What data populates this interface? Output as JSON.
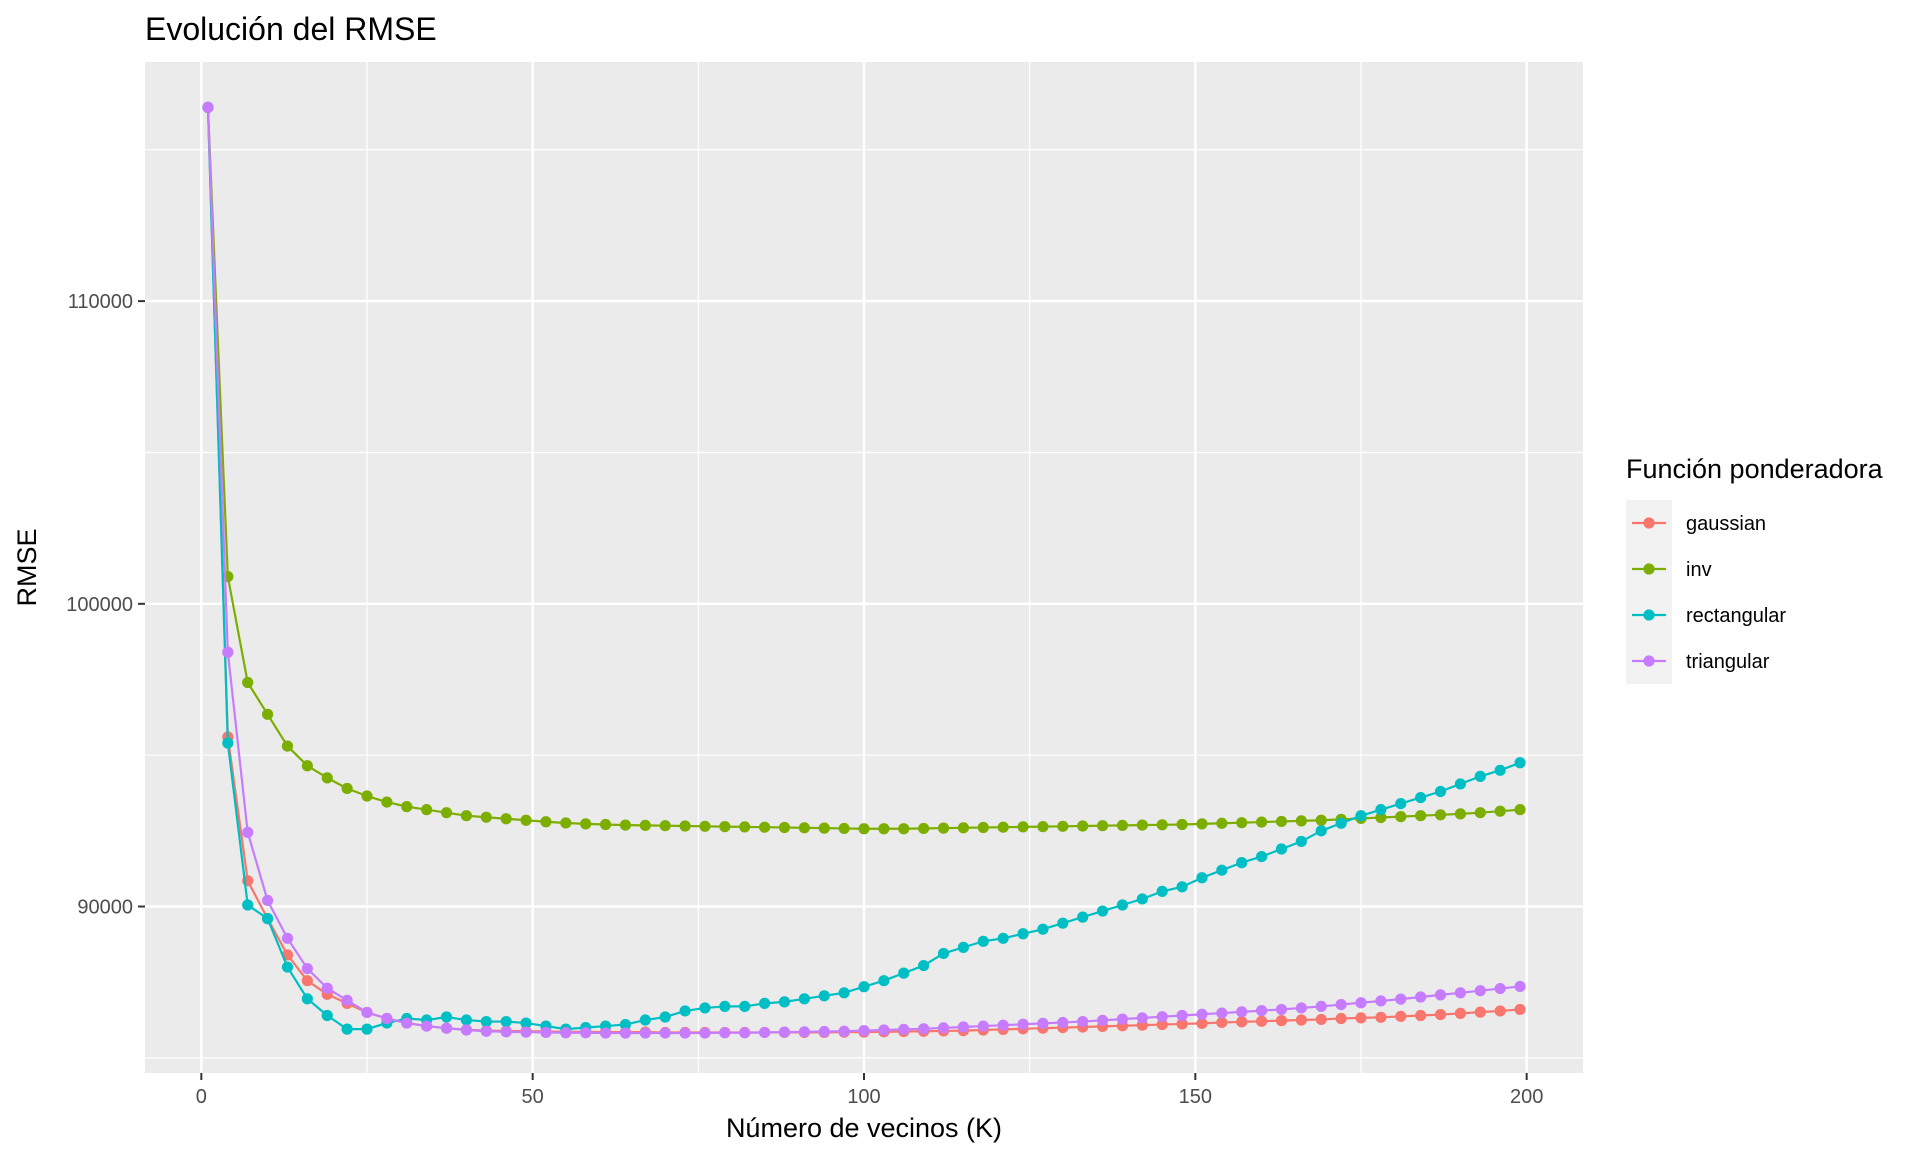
{
  "chart_data": {
    "type": "line",
    "title": "Evolución del RMSE",
    "xlabel": "Número de vecinos (K)",
    "ylabel": "RMSE",
    "xlim": [
      -8.5,
      208.5
    ],
    "ylim": [
      84500,
      117900
    ],
    "x_ticks": [
      0,
      50,
      100,
      150,
      200
    ],
    "y_ticks": [
      90000,
      100000,
      110000
    ],
    "x_tick_labels": [
      "0",
      "50",
      "100",
      "150",
      "200"
    ],
    "y_tick_labels": [
      "90000",
      "100000",
      "110000"
    ],
    "x": [
      1,
      4,
      7,
      10,
      13,
      16,
      19,
      22,
      25,
      28,
      31,
      34,
      37,
      40,
      43,
      46,
      49,
      52,
      55,
      58,
      61,
      64,
      67,
      70,
      73,
      76,
      79,
      82,
      85,
      88,
      91,
      94,
      97,
      100,
      103,
      106,
      109,
      112,
      115,
      118,
      121,
      124,
      127,
      130,
      133,
      136,
      139,
      142,
      145,
      148,
      151,
      154,
      157,
      160,
      163,
      166,
      169,
      172,
      175,
      178,
      181,
      184,
      187,
      190,
      193,
      196,
      199
    ],
    "legend": {
      "title": "Función ponderadora",
      "position": "right"
    },
    "grid": true,
    "series": [
      {
        "name": "gaussian",
        "color": "#F8766D",
        "values": [
          116400,
          95600,
          90850,
          89600,
          88400,
          87550,
          87100,
          86800,
          86500,
          86300,
          86150,
          86050,
          85980,
          85930,
          85900,
          85890,
          85880,
          85870,
          85860,
          85860,
          85850,
          85850,
          85850,
          85840,
          85840,
          85840,
          85840,
          85840,
          85840,
          85840,
          85840,
          85840,
          85850,
          85850,
          85860,
          85870,
          85880,
          85890,
          85900,
          85920,
          85940,
          85960,
          85980,
          86000,
          86020,
          86040,
          86060,
          86080,
          86100,
          86120,
          86140,
          86170,
          86190,
          86210,
          86230,
          86250,
          86270,
          86300,
          86320,
          86340,
          86370,
          86400,
          86430,
          86470,
          86510,
          86550,
          86600
        ]
      },
      {
        "name": "inv",
        "color": "#7CAE00",
        "values": [
          116400,
          100900,
          97400,
          96350,
          95300,
          94650,
          94250,
          93900,
          93650,
          93450,
          93300,
          93200,
          93100,
          93000,
          92950,
          92900,
          92850,
          92800,
          92760,
          92730,
          92710,
          92690,
          92680,
          92670,
          92660,
          92650,
          92640,
          92630,
          92620,
          92610,
          92600,
          92590,
          92580,
          92570,
          92570,
          92570,
          92580,
          92590,
          92600,
          92610,
          92620,
          92630,
          92640,
          92650,
          92660,
          92670,
          92680,
          92690,
          92700,
          92710,
          92730,
          92750,
          92770,
          92790,
          92810,
          92830,
          92850,
          92880,
          92910,
          92940,
          92970,
          93000,
          93030,
          93060,
          93100,
          93150,
          93200
        ]
      },
      {
        "name": "rectangular",
        "color": "#00BFC4",
        "values": [
          116400,
          95400,
          90050,
          89600,
          88000,
          86950,
          86400,
          85950,
          85950,
          86150,
          86300,
          86250,
          86350,
          86250,
          86200,
          86200,
          86150,
          86050,
          85950,
          86000,
          86050,
          86100,
          86250,
          86350,
          86550,
          86650,
          86700,
          86700,
          86800,
          86850,
          86950,
          87050,
          87150,
          87350,
          87550,
          87800,
          88050,
          88450,
          88650,
          88850,
          88950,
          89100,
          89250,
          89450,
          89650,
          89850,
          90050,
          90250,
          90500,
          90650,
          90950,
          91200,
          91450,
          91650,
          91900,
          92150,
          92500,
          92750,
          93000,
          93200,
          93400,
          93600,
          93800,
          94050,
          94300,
          94500,
          94750
        ]
      },
      {
        "name": "triangular",
        "color": "#C77CFF",
        "values": [
          116400,
          98400,
          92450,
          90200,
          88950,
          87950,
          87300,
          86900,
          86500,
          86300,
          86150,
          86050,
          85980,
          85920,
          85880,
          85860,
          85850,
          85840,
          85830,
          85830,
          85820,
          85820,
          85820,
          85820,
          85820,
          85820,
          85830,
          85830,
          85840,
          85850,
          85860,
          85870,
          85880,
          85900,
          85920,
          85940,
          85960,
          85990,
          86020,
          86050,
          86080,
          86110,
          86140,
          86170,
          86200,
          86240,
          86280,
          86320,
          86360,
          86400,
          86440,
          86480,
          86520,
          86560,
          86600,
          86650,
          86700,
          86760,
          86820,
          86880,
          86940,
          87010,
          87080,
          87150,
          87220,
          87290,
          87360
        ]
      }
    ]
  }
}
